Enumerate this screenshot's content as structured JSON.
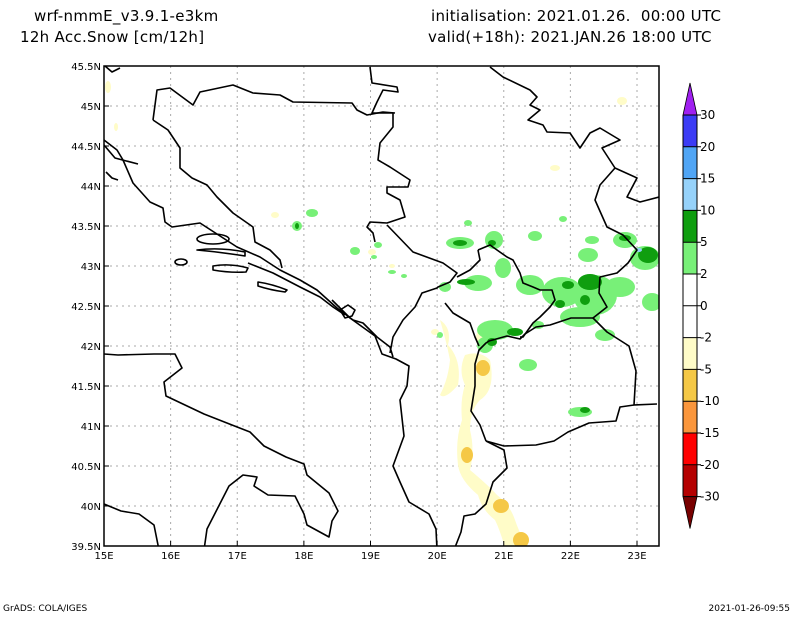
{
  "header": {
    "model": "wrf-nmmE_v3.9.1-e3km",
    "variable": "12h Acc.Snow [cm/12h]",
    "init": "initialisation: 2021.01.26.  00:00 UTC",
    "valid": "valid(+18h): 2021.JAN.26 18:00 UTC"
  },
  "map": {
    "region": "Western Balkans / Adriatic",
    "lon_range": [
      15,
      23.33
    ],
    "lat_range": [
      39.5,
      45.5
    ],
    "lon_labels": [
      "15E",
      "16E",
      "17E",
      "18E",
      "19E",
      "20E",
      "21E",
      "22E",
      "23E"
    ],
    "lat_labels": [
      "45.5N",
      "45N",
      "44.5N",
      "44N",
      "43.5N",
      "43N",
      "42.5N",
      "42N",
      "41.5N",
      "41N",
      "40.5N",
      "40N",
      "39.5N"
    ],
    "grid": "dotted"
  },
  "colorbar": {
    "levels": [
      "30",
      "20",
      "15",
      "10",
      "5",
      "2",
      "0",
      "-2",
      "-5",
      "-10",
      "-15",
      "-20",
      "-30"
    ],
    "over_color": "#a020f0",
    "under_color": "#780000",
    "colors": [
      "#3c3cf5",
      "#50a5f5",
      "#96d2fa",
      "#0f9e0f",
      "#78f078",
      "#ffffff",
      "#ffffff",
      "#fffcc8",
      "#f5c846",
      "#fa963c",
      "#ff0000",
      "#b40000"
    ]
  },
  "footer": {
    "left": "GrADS: COLA/IGES",
    "right": "2021-01-26-09:55"
  }
}
